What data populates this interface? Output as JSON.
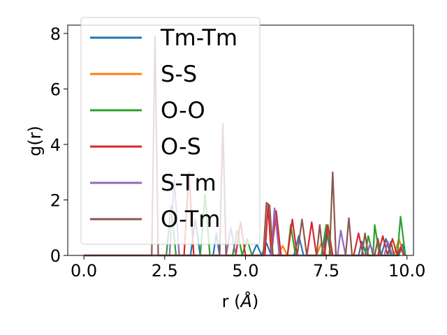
{
  "chart_data": {
    "type": "line",
    "xlabel": "r (",
    "xlabel_unit": "Å",
    "xlabel_close": ")",
    "ylabel": "g(r)",
    "xlim": [
      -0.5,
      10.2
    ],
    "ylim": [
      0,
      8.3
    ],
    "xticks": [
      0.0,
      2.5,
      5.0,
      7.5,
      10.0
    ],
    "xtick_labels": [
      "0.0",
      "2.5",
      "5.0",
      "7.5",
      "10.0"
    ],
    "yticks": [
      0,
      2,
      4,
      6,
      8
    ],
    "ytick_labels": [
      "0",
      "2",
      "4",
      "6",
      "8"
    ],
    "legend_position": "upper-left",
    "series": [
      {
        "name": "Tm-Tm",
        "color": "#1f77b4",
        "points": [
          [
            0,
            0
          ],
          [
            3.3,
            0
          ],
          [
            3.45,
            1.3
          ],
          [
            3.6,
            0
          ],
          [
            4.0,
            0
          ],
          [
            4.1,
            0.8
          ],
          [
            4.2,
            0
          ],
          [
            5.2,
            0
          ],
          [
            5.35,
            0.4
          ],
          [
            5.5,
            0
          ],
          [
            5.65,
            0.45
          ],
          [
            5.8,
            0
          ],
          [
            6.5,
            0
          ],
          [
            6.65,
            0.7
          ],
          [
            6.8,
            0
          ],
          [
            7.4,
            0
          ],
          [
            7.5,
            0.9
          ],
          [
            7.65,
            0
          ],
          [
            8.5,
            0
          ],
          [
            8.6,
            0.5
          ],
          [
            8.75,
            0
          ],
          [
            9.2,
            0
          ],
          [
            9.35,
            0.6
          ],
          [
            9.5,
            0
          ],
          [
            9.75,
            0
          ],
          [
            9.85,
            0.4
          ],
          [
            9.95,
            0
          ]
        ]
      },
      {
        "name": "S-S",
        "color": "#ff7f0e",
        "points": [
          [
            0,
            0
          ],
          [
            6.0,
            0
          ],
          [
            6.15,
            0.35
          ],
          [
            6.3,
            0
          ],
          [
            7.2,
            0
          ],
          [
            7.35,
            0.45
          ],
          [
            7.5,
            0
          ],
          [
            9.6,
            0
          ],
          [
            9.75,
            0.6
          ],
          [
            9.9,
            0
          ]
        ]
      },
      {
        "name": "O-O",
        "color": "#2ca02c",
        "points": [
          [
            0,
            0
          ],
          [
            2.55,
            0
          ],
          [
            2.7,
            1.8
          ],
          [
            2.85,
            0
          ],
          [
            3.6,
            0
          ],
          [
            3.75,
            2.2
          ],
          [
            3.9,
            0
          ],
          [
            4.6,
            0
          ],
          [
            4.75,
            0.9
          ],
          [
            4.9,
            0
          ],
          [
            5.05,
            0.6
          ],
          [
            5.2,
            0
          ],
          [
            6.3,
            0
          ],
          [
            6.4,
            1.1
          ],
          [
            6.55,
            0
          ],
          [
            7.35,
            0
          ],
          [
            7.5,
            1.1
          ],
          [
            7.65,
            0
          ],
          [
            8.7,
            0
          ],
          [
            8.8,
            0.7
          ],
          [
            8.95,
            0
          ],
          [
            9.0,
            1.1
          ],
          [
            9.15,
            0
          ],
          [
            9.7,
            0
          ],
          [
            9.8,
            1.4
          ],
          [
            9.95,
            0
          ]
        ]
      },
      {
        "name": "O-S",
        "color": "#d62728",
        "points": [
          [
            0,
            0
          ],
          [
            3.1,
            0
          ],
          [
            3.25,
            3.0
          ],
          [
            3.4,
            0
          ],
          [
            4.7,
            0
          ],
          [
            4.85,
            1.2
          ],
          [
            5.0,
            0
          ],
          [
            5.6,
            0
          ],
          [
            5.7,
            1.8
          ],
          [
            5.8,
            0
          ],
          [
            5.95,
            1.6
          ],
          [
            6.1,
            0
          ],
          [
            6.3,
            0
          ],
          [
            6.45,
            1.3
          ],
          [
            6.6,
            0
          ],
          [
            6.9,
            0
          ],
          [
            7.05,
            1.2
          ],
          [
            7.2,
            0
          ],
          [
            7.45,
            0
          ],
          [
            7.55,
            1.1
          ],
          [
            7.7,
            0
          ],
          [
            8.35,
            0
          ],
          [
            8.5,
            0.8
          ],
          [
            8.65,
            0
          ],
          [
            9.1,
            0
          ],
          [
            9.25,
            0.7
          ],
          [
            9.4,
            0
          ],
          [
            9.55,
            0.6
          ],
          [
            9.7,
            0
          ],
          [
            9.8,
            0.3
          ],
          [
            9.9,
            0
          ]
        ]
      },
      {
        "name": "S-Tm",
        "color": "#9467bd",
        "points": [
          [
            0,
            0
          ],
          [
            2.65,
            0
          ],
          [
            2.8,
            2.7
          ],
          [
            2.95,
            0
          ],
          [
            4.4,
            0
          ],
          [
            4.55,
            1.0
          ],
          [
            4.7,
            0
          ],
          [
            5.8,
            0
          ],
          [
            5.9,
            1.7
          ],
          [
            6.05,
            0
          ],
          [
            7.85,
            0
          ],
          [
            7.95,
            0.9
          ],
          [
            8.1,
            0
          ],
          [
            8.75,
            0
          ],
          [
            8.85,
            0.4
          ],
          [
            9.0,
            0
          ],
          [
            9.3,
            0
          ],
          [
            9.4,
            0.5
          ],
          [
            9.55,
            0
          ]
        ]
      },
      {
        "name": "O-Tm",
        "color": "#8c564b",
        "points": [
          [
            0,
            0
          ],
          [
            2.1,
            0
          ],
          [
            2.2,
            7.9
          ],
          [
            2.3,
            0
          ],
          [
            4.2,
            0
          ],
          [
            4.3,
            4.75
          ],
          [
            4.4,
            0
          ],
          [
            5.55,
            0
          ],
          [
            5.65,
            1.9
          ],
          [
            5.75,
            1.8
          ],
          [
            5.85,
            0
          ],
          [
            6.6,
            0
          ],
          [
            6.75,
            1.3
          ],
          [
            6.9,
            0
          ],
          [
            7.2,
            0
          ],
          [
            7.3,
            1.1
          ],
          [
            7.4,
            0
          ],
          [
            7.6,
            0
          ],
          [
            7.7,
            3.0
          ],
          [
            7.8,
            0
          ],
          [
            8.1,
            0
          ],
          [
            8.2,
            1.35
          ],
          [
            8.3,
            0
          ],
          [
            8.6,
            0
          ],
          [
            8.7,
            0.8
          ],
          [
            8.8,
            0
          ],
          [
            9.0,
            0
          ],
          [
            9.1,
            0.6
          ],
          [
            9.2,
            0
          ],
          [
            9.4,
            0
          ],
          [
            9.5,
            0.5
          ],
          [
            9.6,
            0
          ]
        ]
      }
    ]
  }
}
